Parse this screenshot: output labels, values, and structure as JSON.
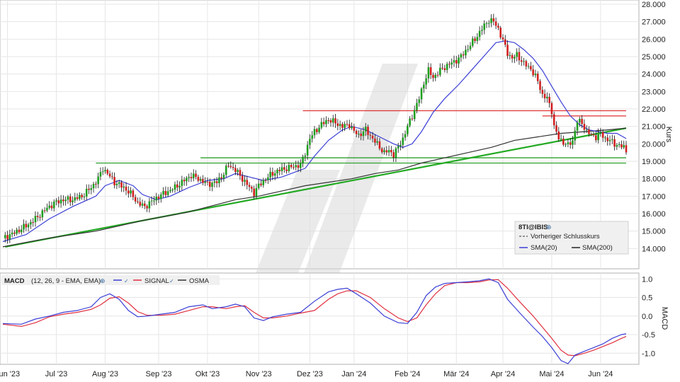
{
  "chart_data": [
    {
      "type": "candlestick",
      "panel": "price",
      "symbol": "8TI@IBIS",
      "ylabel": "Kurs",
      "ylim": [
        13.0,
        28.0
      ],
      "y_ticks": [
        "14.000",
        "15.000",
        "16.000",
        "17.000",
        "18.000",
        "19.000",
        "20.000",
        "21.000",
        "22.000",
        "23.000",
        "24.000",
        "25.000",
        "26.000",
        "27.000",
        "28.000"
      ],
      "x_ticks": [
        {
          "label": "Jun '23",
          "t": 2
        },
        {
          "label": "Jul '23",
          "t": 23
        },
        {
          "label": "Aug '23",
          "t": 44
        },
        {
          "label": "Sep '23",
          "t": 67
        },
        {
          "label": "Okt '23",
          "t": 88
        },
        {
          "label": "Nov '23",
          "t": 110
        },
        {
          "label": "Dez '23",
          "t": 132
        },
        {
          "label": "Jan '24",
          "t": 151
        },
        {
          "label": "Feb '24",
          "t": 174
        },
        {
          "label": "Mär '24",
          "t": 195
        },
        {
          "label": "Apr '24",
          "t": 215
        },
        {
          "label": "Mai '24",
          "t": 236
        },
        {
          "label": "Jun '24",
          "t": 257
        }
      ],
      "t_range": [
        0,
        268
      ],
      "close_path": [
        [
          0,
          14.6
        ],
        [
          5,
          14.9
        ],
        [
          10,
          15.3
        ],
        [
          14,
          15.7
        ],
        [
          18,
          16.2
        ],
        [
          22,
          16.6
        ],
        [
          26,
          16.8
        ],
        [
          30,
          16.8
        ],
        [
          34,
          17.0
        ],
        [
          38,
          17.5
        ],
        [
          41,
          18.0
        ],
        [
          43,
          18.6
        ],
        [
          45,
          18.3
        ],
        [
          48,
          17.8
        ],
        [
          52,
          17.5
        ],
        [
          56,
          17.0
        ],
        [
          58,
          16.6
        ],
        [
          61,
          16.4
        ],
        [
          64,
          16.7
        ],
        [
          67,
          17.0
        ],
        [
          70,
          17.2
        ],
        [
          74,
          17.5
        ],
        [
          78,
          17.9
        ],
        [
          81,
          18.2
        ],
        [
          84,
          18.0
        ],
        [
          88,
          17.7
        ],
        [
          92,
          17.8
        ],
        [
          95,
          18.3
        ],
        [
          97,
          18.8
        ],
        [
          100,
          18.5
        ],
        [
          103,
          18.0
        ],
        [
          106,
          17.5
        ],
        [
          108,
          17.2
        ],
        [
          110,
          17.6
        ],
        [
          113,
          18.0
        ],
        [
          116,
          18.3
        ],
        [
          119,
          18.5
        ],
        [
          122,
          18.6
        ],
        [
          125,
          18.7
        ],
        [
          128,
          18.8
        ],
        [
          130,
          19.5
        ],
        [
          132,
          20.3
        ],
        [
          134,
          20.7
        ],
        [
          137,
          21.1
        ],
        [
          140,
          21.4
        ],
        [
          143,
          21.2
        ],
        [
          146,
          21.0
        ],
        [
          149,
          21.1
        ],
        [
          151,
          20.7
        ],
        [
          153,
          20.5
        ],
        [
          156,
          20.8
        ],
        [
          159,
          20.3
        ],
        [
          162,
          19.8
        ],
        [
          164,
          19.5
        ],
        [
          166,
          19.6
        ],
        [
          168,
          19.4
        ],
        [
          170,
          19.8
        ],
        [
          172,
          20.3
        ],
        [
          174,
          21.0
        ],
        [
          176,
          21.6
        ],
        [
          179,
          22.6
        ],
        [
          181,
          23.5
        ],
        [
          183,
          24.2
        ],
        [
          185,
          23.8
        ],
        [
          188,
          24.2
        ],
        [
          191,
          24.5
        ],
        [
          194,
          24.7
        ],
        [
          197,
          25.0
        ],
        [
          200,
          25.5
        ],
        [
          203,
          26.0
        ],
        [
          206,
          26.6
        ],
        [
          209,
          27.1
        ],
        [
          211,
          27.0
        ],
        [
          213,
          26.6
        ],
        [
          215,
          25.9
        ],
        [
          217,
          25.2
        ],
        [
          219,
          24.9
        ],
        [
          221,
          25.1
        ],
        [
          224,
          24.6
        ],
        [
          227,
          24.3
        ],
        [
          230,
          23.6
        ],
        [
          232,
          22.8
        ],
        [
          234,
          22.6
        ],
        [
          236,
          21.9
        ],
        [
          237,
          21.0
        ],
        [
          239,
          20.3
        ],
        [
          241,
          20.1
        ],
        [
          243,
          19.9
        ],
        [
          245,
          20.2
        ],
        [
          247,
          21.3
        ],
        [
          249,
          21.2
        ],
        [
          251,
          20.7
        ],
        [
          253,
          20.5
        ],
        [
          255,
          20.4
        ],
        [
          257,
          20.6
        ],
        [
          259,
          20.3
        ],
        [
          261,
          20.2
        ],
        [
          263,
          20.0
        ],
        [
          265,
          19.9
        ],
        [
          267,
          19.8
        ],
        [
          268,
          19.6
        ]
      ],
      "sma20_path": [
        [
          0,
          14.4
        ],
        [
          10,
          14.8
        ],
        [
          20,
          15.7
        ],
        [
          30,
          16.4
        ],
        [
          40,
          17.0
        ],
        [
          44,
          17.6
        ],
        [
          50,
          17.9
        ],
        [
          56,
          17.6
        ],
        [
          60,
          17.1
        ],
        [
          66,
          16.8
        ],
        [
          72,
          17.0
        ],
        [
          80,
          17.5
        ],
        [
          88,
          17.9
        ],
        [
          95,
          18.0
        ],
        [
          100,
          18.3
        ],
        [
          106,
          18.1
        ],
        [
          112,
          17.9
        ],
        [
          120,
          18.1
        ],
        [
          126,
          18.4
        ],
        [
          130,
          18.6
        ],
        [
          134,
          19.3
        ],
        [
          140,
          20.2
        ],
        [
          146,
          20.8
        ],
        [
          150,
          21.0
        ],
        [
          156,
          20.8
        ],
        [
          162,
          20.4
        ],
        [
          168,
          20.0
        ],
        [
          172,
          19.8
        ],
        [
          176,
          20.0
        ],
        [
          180,
          20.7
        ],
        [
          185,
          21.8
        ],
        [
          190,
          22.6
        ],
        [
          196,
          23.4
        ],
        [
          202,
          24.3
        ],
        [
          208,
          25.2
        ],
        [
          212,
          25.8
        ],
        [
          216,
          25.9
        ],
        [
          220,
          25.8
        ],
        [
          224,
          25.4
        ],
        [
          228,
          24.9
        ],
        [
          232,
          24.2
        ],
        [
          236,
          23.3
        ],
        [
          240,
          22.4
        ],
        [
          244,
          21.6
        ],
        [
          248,
          21.1
        ],
        [
          252,
          20.8
        ],
        [
          256,
          20.7
        ],
        [
          260,
          20.6
        ],
        [
          264,
          20.6
        ],
        [
          268,
          20.3
        ]
      ],
      "sma200_path": [
        [
          0,
          14.1
        ],
        [
          20,
          14.6
        ],
        [
          40,
          15.0
        ],
        [
          60,
          15.6
        ],
        [
          80,
          16.1
        ],
        [
          100,
          16.8
        ],
        [
          110,
          17.0
        ],
        [
          120,
          17.3
        ],
        [
          130,
          17.6
        ],
        [
          140,
          17.8
        ],
        [
          150,
          18.0
        ],
        [
          160,
          18.3
        ],
        [
          170,
          18.5
        ],
        [
          180,
          18.9
        ],
        [
          190,
          19.2
        ],
        [
          200,
          19.5
        ],
        [
          210,
          19.8
        ],
        [
          220,
          20.2
        ],
        [
          230,
          20.4
        ],
        [
          240,
          20.6
        ],
        [
          250,
          20.7
        ],
        [
          260,
          20.8
        ],
        [
          268,
          20.9
        ]
      ],
      "trendline": [
        [
          1,
          14.1
        ],
        [
          268,
          20.9
        ]
      ],
      "support_lines": [
        {
          "color": "#2ca02c",
          "y": 18.9,
          "t": [
            40,
            268
          ]
        },
        {
          "color": "#2ca02c",
          "y": 19.2,
          "t": [
            85,
            268
          ]
        },
        {
          "color": "#e03030",
          "y": 21.9,
          "t": [
            129,
            268
          ]
        },
        {
          "color": "#e03030",
          "y": 21.6,
          "t": [
            232,
            268
          ]
        }
      ],
      "legend": {
        "title": "8TI@IBIS",
        "items": [
          "Vorheriger Schlusskurs",
          "SMA(20)",
          "SMA(200)"
        ]
      }
    },
    {
      "type": "line",
      "panel": "macd",
      "ylabel": "MACD",
      "ylim": [
        -1.3,
        1.1
      ],
      "y_ticks": [
        "1.0",
        "0.5",
        "0.0",
        "-0.5",
        "-1.0"
      ],
      "legend": {
        "title": "MACD",
        "params": "(12, 26, 9 - EMA, EMA)",
        "items": [
          "SIGNAL",
          "OSMA"
        ]
      },
      "series": [
        {
          "name": "MACD",
          "color": "#3b3fd6",
          "path": [
            [
              0,
              -0.2
            ],
            [
              8,
              -0.22
            ],
            [
              14,
              -0.08
            ],
            [
              20,
              0.0
            ],
            [
              26,
              0.1
            ],
            [
              32,
              0.15
            ],
            [
              38,
              0.25
            ],
            [
              42,
              0.5
            ],
            [
              46,
              0.6
            ],
            [
              50,
              0.45
            ],
            [
              54,
              0.15
            ],
            [
              58,
              -0.02
            ],
            [
              62,
              0.0
            ],
            [
              68,
              0.05
            ],
            [
              74,
              0.1
            ],
            [
              80,
              0.25
            ],
            [
              86,
              0.3
            ],
            [
              90,
              0.2
            ],
            [
              96,
              0.25
            ],
            [
              100,
              0.32
            ],
            [
              104,
              0.25
            ],
            [
              108,
              -0.05
            ],
            [
              112,
              -0.12
            ],
            [
              116,
              -0.02
            ],
            [
              122,
              0.05
            ],
            [
              128,
              0.1
            ],
            [
              134,
              0.4
            ],
            [
              140,
              0.65
            ],
            [
              144,
              0.72
            ],
            [
              148,
              0.75
            ],
            [
              152,
              0.6
            ],
            [
              158,
              0.35
            ],
            [
              164,
              0.0
            ],
            [
              170,
              -0.18
            ],
            [
              174,
              -0.2
            ],
            [
              178,
              0.1
            ],
            [
              182,
              0.55
            ],
            [
              186,
              0.78
            ],
            [
              190,
              0.88
            ],
            [
              195,
              0.9
            ],
            [
              200,
              0.92
            ],
            [
              205,
              0.95
            ],
            [
              209,
              1.0
            ],
            [
              213,
              0.9
            ],
            [
              217,
              0.45
            ],
            [
              222,
              0.1
            ],
            [
              228,
              -0.3
            ],
            [
              232,
              -0.55
            ],
            [
              236,
              -0.85
            ],
            [
              240,
              -1.2
            ],
            [
              243,
              -1.28
            ],
            [
              246,
              -1.05
            ],
            [
              250,
              -0.95
            ],
            [
              254,
              -0.85
            ],
            [
              258,
              -0.75
            ],
            [
              262,
              -0.6
            ],
            [
              266,
              -0.5
            ],
            [
              268,
              -0.48
            ]
          ]
        },
        {
          "name": "SIGNAL",
          "color": "#e03040",
          "path": [
            [
              0,
              -0.22
            ],
            [
              8,
              -0.28
            ],
            [
              14,
              -0.18
            ],
            [
              20,
              -0.02
            ],
            [
              26,
              0.05
            ],
            [
              32,
              0.1
            ],
            [
              38,
              0.18
            ],
            [
              42,
              0.3
            ],
            [
              46,
              0.48
            ],
            [
              50,
              0.52
            ],
            [
              54,
              0.35
            ],
            [
              58,
              0.12
            ],
            [
              62,
              0.02
            ],
            [
              68,
              0.02
            ],
            [
              74,
              0.05
            ],
            [
              80,
              0.15
            ],
            [
              86,
              0.25
            ],
            [
              90,
              0.25
            ],
            [
              96,
              0.2
            ],
            [
              100,
              0.25
            ],
            [
              104,
              0.28
            ],
            [
              108,
              0.1
            ],
            [
              112,
              -0.05
            ],
            [
              116,
              -0.05
            ],
            [
              122,
              0.0
            ],
            [
              128,
              0.08
            ],
            [
              134,
              0.15
            ],
            [
              140,
              0.45
            ],
            [
              144,
              0.6
            ],
            [
              148,
              0.68
            ],
            [
              152,
              0.68
            ],
            [
              158,
              0.5
            ],
            [
              164,
              0.2
            ],
            [
              170,
              -0.05
            ],
            [
              174,
              -0.15
            ],
            [
              178,
              -0.05
            ],
            [
              182,
              0.3
            ],
            [
              186,
              0.6
            ],
            [
              190,
              0.82
            ],
            [
              195,
              0.9
            ],
            [
              200,
              0.9
            ],
            [
              205,
              0.92
            ],
            [
              209,
              0.97
            ],
            [
              213,
              0.98
            ],
            [
              217,
              0.75
            ],
            [
              222,
              0.4
            ],
            [
              228,
              0.0
            ],
            [
              232,
              -0.3
            ],
            [
              236,
              -0.6
            ],
            [
              240,
              -0.92
            ],
            [
              243,
              -1.05
            ],
            [
              246,
              -1.07
            ],
            [
              250,
              -1.0
            ],
            [
              254,
              -0.92
            ],
            [
              258,
              -0.82
            ],
            [
              262,
              -0.72
            ],
            [
              266,
              -0.6
            ],
            [
              268,
              -0.55
            ]
          ]
        }
      ]
    }
  ]
}
